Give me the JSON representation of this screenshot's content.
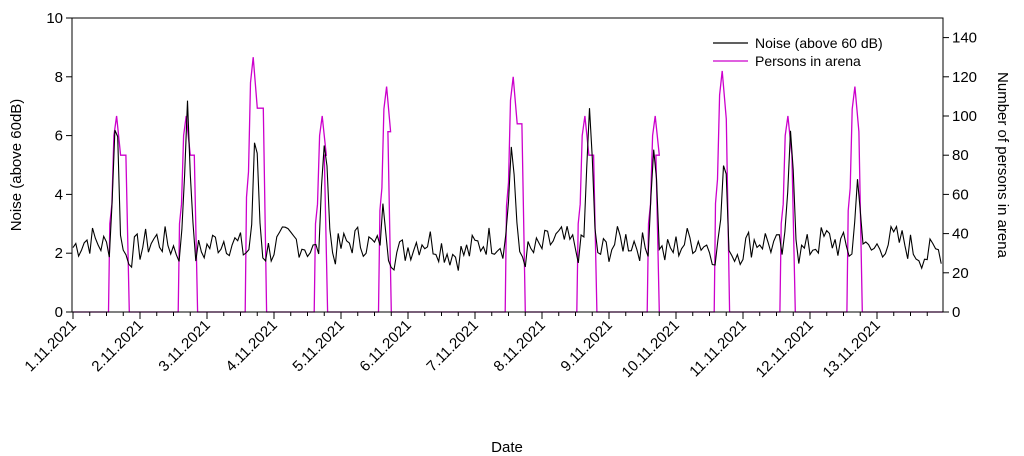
{
  "chart_data": {
    "type": "line",
    "xlabel": "Date",
    "ylabel_left": "Noise (above 60dB)",
    "ylabel_right": "Number of persons in arena",
    "ylim_left": [
      0,
      10
    ],
    "yticks_left": [
      "0",
      "2",
      "4",
      "6",
      "8",
      "10"
    ],
    "ylim_right": [
      0,
      150
    ],
    "yticks_right": [
      "0",
      "20",
      "40",
      "60",
      "80",
      "100",
      "120",
      "140"
    ],
    "xlim_days": [
      0,
      13.2
    ],
    "x_tick_labels": [
      "1.11.2021",
      "2.11.2021",
      "3.11.2021",
      "4.11.2021",
      "5.11.2021",
      "6.11.2021",
      "7.11.2021",
      "8.11.2021",
      "9.11.2021",
      "10.11.2021",
      "11.11.2021",
      "12.11.2021",
      "13.11.2021"
    ],
    "legend_position": "top-right",
    "grid": false,
    "series": [
      {
        "name": "Noise (above 60 dB)",
        "color": "#000000",
        "axis": "left",
        "baseline": 2.2,
        "peaks": [
          {
            "day": 0.64,
            "value": 7.0
          },
          {
            "day": 1.71,
            "value": 7.6
          },
          {
            "day": 2.73,
            "value": 6.2
          },
          {
            "day": 3.76,
            "value": 6.6
          },
          {
            "day": 4.64,
            "value": 3.6
          },
          {
            "day": 6.55,
            "value": 5.9
          },
          {
            "day": 7.71,
            "value": 7.3
          },
          {
            "day": 8.67,
            "value": 6.1
          },
          {
            "day": 9.72,
            "value": 5.3
          },
          {
            "day": 10.72,
            "value": 6.7
          },
          {
            "day": 11.72,
            "value": 4.8
          }
        ]
      },
      {
        "name": "Persons in arena",
        "color": "#cc00cc",
        "axis": "right",
        "events": [
          {
            "start": 0.53,
            "end": 0.84,
            "value": 100
          },
          {
            "start": 1.57,
            "end": 1.86,
            "value": 100
          },
          {
            "start": 2.57,
            "end": 2.89,
            "value": 130
          },
          {
            "start": 3.6,
            "end": 3.8,
            "value": 100
          },
          {
            "start": 4.56,
            "end": 4.75,
            "value": 115
          },
          {
            "start": 6.45,
            "end": 6.75,
            "value": 120
          },
          {
            "start": 7.52,
            "end": 7.82,
            "value": 100
          },
          {
            "start": 8.57,
            "end": 8.75,
            "value": 100
          },
          {
            "start": 9.57,
            "end": 9.8,
            "value": 123
          },
          {
            "start": 10.55,
            "end": 10.78,
            "value": 100
          },
          {
            "start": 11.55,
            "end": 11.78,
            "value": 115
          }
        ]
      }
    ]
  }
}
